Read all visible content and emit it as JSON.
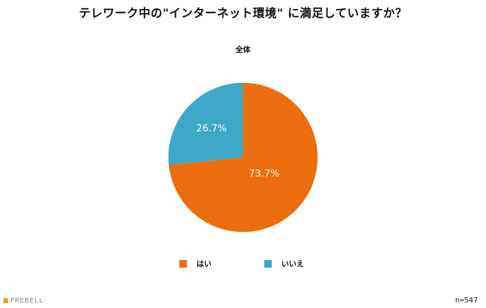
{
  "chart_data": {
    "type": "pie",
    "title": "テレワーク中の\"インターネット環境\" に満足していますか？",
    "subtitle": "全体",
    "slices": [
      {
        "label": "はい",
        "value": 73.7,
        "value_label": "73.7%",
        "color": "#ec6d0d"
      },
      {
        "label": "いいえ",
        "value": 26.7,
        "value_label": "26.7%",
        "color": "#3ea7c8"
      }
    ],
    "legend_position": "bottom-center"
  },
  "footer": {
    "logo_text": "PREBELL",
    "sample_size": "n=547"
  }
}
